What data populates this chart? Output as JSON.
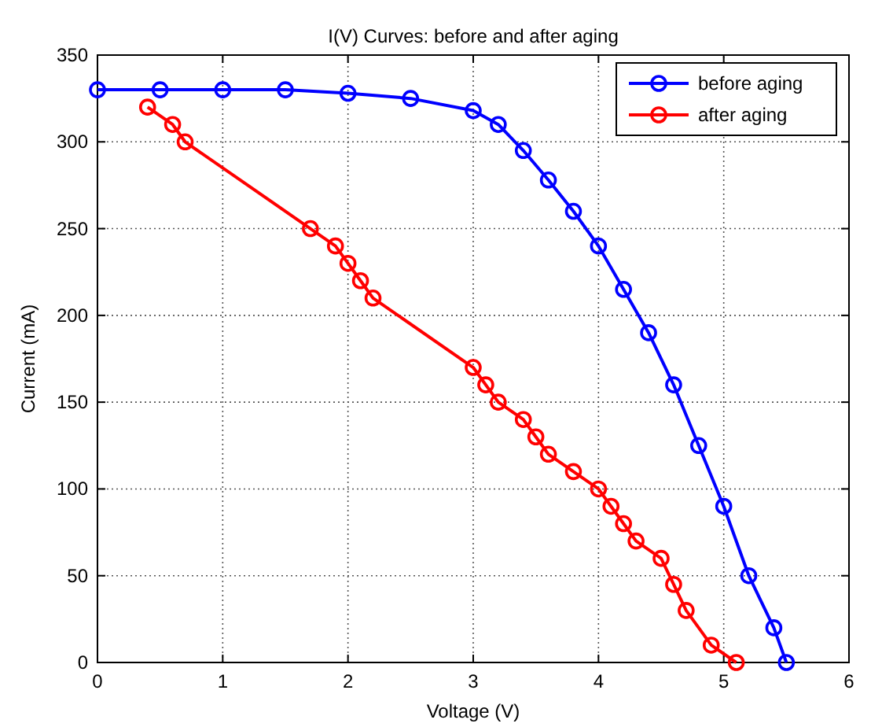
{
  "chart_data": {
    "type": "line",
    "title": "I(V) Curves: before and after aging",
    "xlabel": "Voltage (V)",
    "ylabel": "Current (mA)",
    "xlim": [
      0,
      6
    ],
    "ylim": [
      0,
      350
    ],
    "xticks": [
      0,
      1,
      2,
      3,
      4,
      5,
      6
    ],
    "yticks": [
      0,
      50,
      100,
      150,
      200,
      250,
      300,
      350
    ],
    "grid": true,
    "legend": "top right",
    "marker": "circle",
    "line_style": "solid",
    "series": [
      {
        "name": "before aging",
        "color": "#0000ff",
        "x": [
          0,
          0.5,
          1,
          1.5,
          2,
          2.5,
          3,
          3.2,
          3.4,
          3.6,
          3.8,
          4,
          4.2,
          4.4,
          4.6,
          4.8,
          5,
          5.2,
          5.4,
          5.5
        ],
        "values": [
          330,
          330,
          330,
          330,
          328,
          325,
          318,
          310,
          295,
          278,
          260,
          240,
          215,
          190,
          160,
          125,
          90,
          50,
          20,
          0
        ]
      },
      {
        "name": "after aging",
        "color": "#ff0000",
        "x": [
          0.4,
          0.6,
          0.7,
          1.7,
          1.9,
          2,
          2.1,
          2.2,
          3,
          3.1,
          3.2,
          3.4,
          3.5,
          3.6,
          3.8,
          4,
          4.1,
          4.2,
          4.3,
          4.5,
          4.6,
          4.7,
          4.9,
          5.1
        ],
        "values": [
          320,
          310,
          300,
          250,
          240,
          230,
          220,
          210,
          170,
          160,
          150,
          140,
          130,
          120,
          110,
          100,
          90,
          80,
          70,
          60,
          45,
          30,
          10,
          0
        ]
      }
    ]
  }
}
